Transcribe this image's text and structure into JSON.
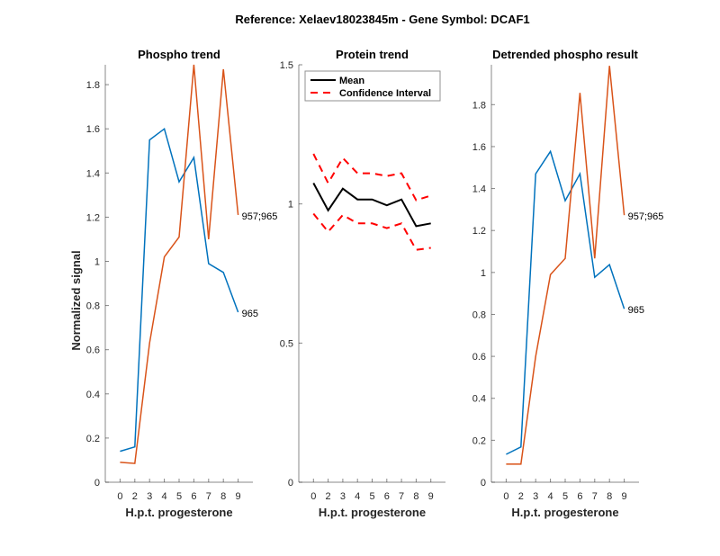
{
  "chart_data": [
    {
      "type": "line",
      "suptitle": "Reference:  Xelaev18023845m - Gene Symbol:  DCAF1",
      "title": "Phospho trend",
      "xlabel": "H.p.t. progesterone",
      "ylabel": "Normalized signal",
      "categories": [
        "0",
        "2",
        "3",
        "4",
        "5",
        "6",
        "7",
        "8",
        "9"
      ],
      "ylim": [
        0,
        1.89
      ],
      "yticks": [
        0,
        0.2,
        0.4,
        0.6,
        0.8,
        1,
        1.2,
        1.4,
        1.6,
        1.8
      ],
      "ytick_labels": [
        "0",
        "0.2",
        "0.4",
        "0.6",
        "0.8",
        "1",
        "1.2",
        "1.4",
        "1.6",
        "1.8"
      ],
      "series": [
        {
          "name": "965",
          "color": "#0072BD",
          "values": [
            0.14,
            0.16,
            1.55,
            1.6,
            1.36,
            1.47,
            0.99,
            0.95,
            0.77
          ]
        },
        {
          "name": "957;965",
          "color": "#D95319",
          "values": [
            0.09,
            0.085,
            0.63,
            1.02,
            1.11,
            1.89,
            1.1,
            1.87,
            1.21
          ]
        }
      ]
    },
    {
      "type": "line",
      "title": "Protein trend",
      "xlabel": "H.p.t. progesterone",
      "categories": [
        "0",
        "2",
        "3",
        "4",
        "5",
        "6",
        "7",
        "8",
        "9"
      ],
      "ylim": [
        0,
        1.5
      ],
      "yticks": [
        0,
        0.5,
        1,
        1.5
      ],
      "ytick_labels": [
        "0",
        "0.5",
        "1",
        "1.5"
      ],
      "legend": {
        "position": "top-left",
        "entries": [
          "Mean",
          "Confidence Interval"
        ]
      },
      "series": [
        {
          "name": "Mean",
          "color": "#000000",
          "style": "solid",
          "values": [
            1.075,
            0.977,
            1.055,
            1.016,
            1.016,
            0.995,
            1.016,
            0.92,
            0.93
          ]
        },
        {
          "name": "Confidence Interval",
          "color": "#FF0000",
          "style": "dashed",
          "values": [
            1.18,
            1.075,
            1.165,
            1.11,
            1.11,
            1.1,
            1.11,
            1.013,
            1.03
          ]
        },
        {
          "name": "Confidence Interval (lower)",
          "color": "#FF0000",
          "style": "dashed",
          "values": [
            0.965,
            0.9,
            0.96,
            0.93,
            0.93,
            0.913,
            0.93,
            0.835,
            0.842
          ]
        }
      ]
    },
    {
      "type": "line",
      "title": "Detrended phospho result",
      "xlabel": "H.p.t. progesterone",
      "categories": [
        "0",
        "2",
        "3",
        "4",
        "5",
        "6",
        "7",
        "8",
        "9"
      ],
      "ylim": [
        0,
        1.99
      ],
      "yticks": [
        0,
        0.2,
        0.4,
        0.6,
        0.8,
        1,
        1.2,
        1.4,
        1.6,
        1.8
      ],
      "ytick_labels": [
        "0",
        "0.2",
        "0.4",
        "0.6",
        "0.8",
        "1",
        "1.2",
        "1.4",
        "1.6",
        "1.8"
      ],
      "series": [
        {
          "name": "965",
          "color": "#0072BD",
          "values": [
            0.133,
            0.168,
            1.47,
            1.577,
            1.342,
            1.47,
            0.977,
            1.037,
            0.827
          ]
        },
        {
          "name": "957;965",
          "color": "#D95319",
          "values": [
            0.086,
            0.086,
            0.6,
            0.99,
            1.067,
            1.856,
            1.067,
            1.985,
            1.273
          ]
        }
      ]
    }
  ]
}
